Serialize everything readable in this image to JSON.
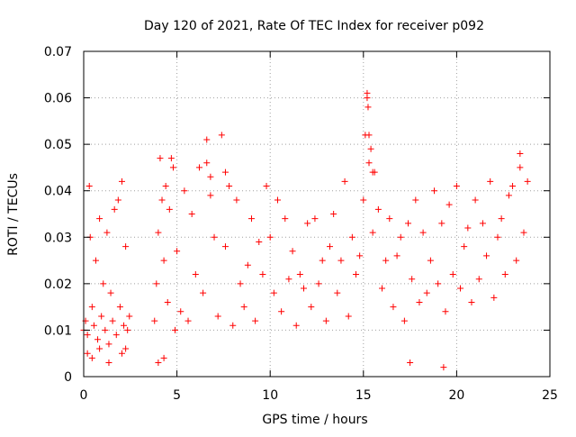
{
  "chart_data": {
    "type": "scatter",
    "title": "Day 120 of 2021, Rate Of TEC Index for receiver p092",
    "xlabel": "GPS time / hours",
    "ylabel": "ROTI / TECUs",
    "xlim": [
      0,
      25
    ],
    "ylim": [
      0,
      0.07
    ],
    "xticks": [
      "0",
      "5",
      "10",
      "15",
      "20",
      "25"
    ],
    "yticks": [
      "0",
      "0.01",
      "0.02",
      "0.03",
      "0.04",
      "0.05",
      "0.06",
      "0.07"
    ],
    "grid": true,
    "marker": "plus",
    "color": "#ff0000",
    "series": [
      {
        "x": [
          0.0,
          0.1,
          0.2,
          0.3,
          0.35,
          0.45,
          0.55,
          0.65,
          0.75,
          0.85,
          0.95,
          1.05,
          1.15,
          1.25,
          1.35,
          1.45,
          1.55,
          1.65,
          1.75,
          1.85,
          1.95,
          2.05,
          2.15,
          2.25,
          2.35,
          2.45,
          0.2,
          0.45,
          0.85,
          1.35,
          2.05,
          2.25,
          3.8,
          3.9,
          4.0,
          4.1,
          4.2,
          4.3,
          4.4,
          4.5,
          4.6,
          4.7,
          4.8,
          4.9,
          5.0,
          5.2,
          5.4,
          5.6,
          5.8,
          6.0,
          6.2,
          6.4,
          6.6,
          6.8,
          7.0,
          7.2,
          7.4,
          7.6,
          7.8,
          8.0,
          8.2,
          8.4,
          8.6,
          8.8,
          9.0,
          9.2,
          9.4,
          9.6,
          9.8,
          10.0,
          10.2,
          10.4,
          10.6,
          10.8,
          11.0,
          11.2,
          11.4,
          11.6,
          11.8,
          12.0,
          12.2,
          12.4,
          12.6,
          12.8,
          13.0,
          13.2,
          13.4,
          13.6,
          13.8,
          14.0,
          14.2,
          14.4,
          14.6,
          14.8,
          15.0,
          15.1,
          15.2,
          15.3,
          15.4,
          15.5,
          15.6,
          15.8,
          16.0,
          16.2,
          16.4,
          16.6,
          16.8,
          17.0,
          17.2,
          17.4,
          17.6,
          17.8,
          18.0,
          18.2,
          18.4,
          18.6,
          18.8,
          19.0,
          19.2,
          19.4,
          19.6,
          19.8,
          20.0,
          20.2,
          20.4,
          20.6,
          20.8,
          21.0,
          21.2,
          21.4,
          21.6,
          21.8,
          22.0,
          22.2,
          22.4,
          22.6,
          22.8,
          23.0,
          23.2,
          23.4,
          23.6,
          23.8,
          6.6,
          6.8,
          7.6,
          15.2,
          15.25,
          15.3,
          15.5,
          23.4,
          4.0,
          4.3,
          17.5,
          19.3
        ],
        "y": [
          0.01,
          0.012,
          0.009,
          0.041,
          0.03,
          0.015,
          0.011,
          0.025,
          0.008,
          0.034,
          0.013,
          0.02,
          0.01,
          0.031,
          0.007,
          0.018,
          0.012,
          0.036,
          0.009,
          0.038,
          0.015,
          0.042,
          0.011,
          0.028,
          0.01,
          0.013,
          0.005,
          0.004,
          0.006,
          0.003,
          0.005,
          0.006,
          0.012,
          0.02,
          0.031,
          0.047,
          0.038,
          0.025,
          0.041,
          0.016,
          0.036,
          0.047,
          0.045,
          0.01,
          0.027,
          0.014,
          0.04,
          0.012,
          0.035,
          0.022,
          0.045,
          0.018,
          0.051,
          0.043,
          0.03,
          0.013,
          0.052,
          0.028,
          0.041,
          0.011,
          0.038,
          0.02,
          0.015,
          0.024,
          0.034,
          0.012,
          0.029,
          0.022,
          0.041,
          0.03,
          0.018,
          0.038,
          0.014,
          0.034,
          0.021,
          0.027,
          0.011,
          0.022,
          0.019,
          0.033,
          0.015,
          0.034,
          0.02,
          0.025,
          0.012,
          0.028,
          0.035,
          0.018,
          0.025,
          0.042,
          0.013,
          0.03,
          0.022,
          0.026,
          0.038,
          0.052,
          0.061,
          0.046,
          0.049,
          0.031,
          0.044,
          0.036,
          0.019,
          0.025,
          0.034,
          0.015,
          0.026,
          0.03,
          0.012,
          0.033,
          0.021,
          0.038,
          0.016,
          0.031,
          0.018,
          0.025,
          0.04,
          0.02,
          0.033,
          0.014,
          0.037,
          0.022,
          0.041,
          0.019,
          0.028,
          0.032,
          0.016,
          0.038,
          0.021,
          0.033,
          0.026,
          0.042,
          0.017,
          0.03,
          0.034,
          0.022,
          0.039,
          0.041,
          0.025,
          0.048,
          0.031,
          0.042,
          0.046,
          0.039,
          0.044,
          0.06,
          0.058,
          0.052,
          0.044,
          0.045,
          0.003,
          0.004,
          0.003,
          0.002
        ]
      }
    ]
  }
}
